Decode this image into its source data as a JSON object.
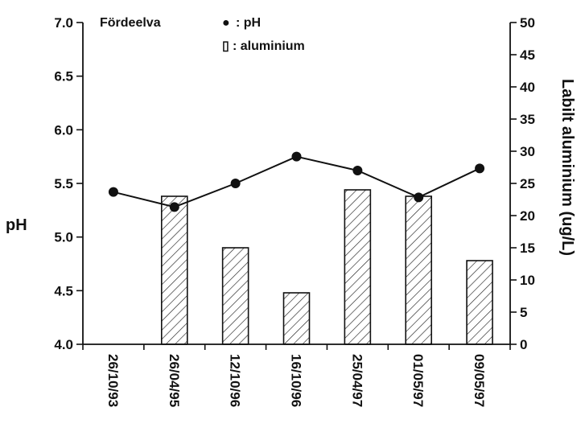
{
  "chart_data": {
    "type": "bar+line",
    "title": "Fördeelva",
    "categories": [
      "26/10/93",
      "26/04/95",
      "12/10/96",
      "16/10/96",
      "25/04/97",
      "01/05/97",
      "09/05/97"
    ],
    "series": [
      {
        "name": "aluminium",
        "type": "bar",
        "axis": "right",
        "pattern": "diagonal-hatch",
        "values": [
          null,
          23,
          15,
          8,
          24,
          23,
          13
        ]
      },
      {
        "name": "pH",
        "type": "line",
        "axis": "left",
        "marker": "filled-circle",
        "values": [
          5.42,
          5.28,
          5.5,
          5.75,
          5.62,
          5.37,
          5.64
        ]
      }
    ],
    "ylabel_left": "pH",
    "ylim_left": [
      4.0,
      7.0
    ],
    "yticks_left": [
      "4.0",
      "4.5",
      "5.0",
      "5.5",
      "6.0",
      "6.5",
      "7.0"
    ],
    "ylabel_right": "Labilt aluminium (ug/L)",
    "ylim_right": [
      0,
      50
    ],
    "yticks_right": [
      "0",
      "5",
      "10",
      "15",
      "20",
      "25",
      "30",
      "35",
      "40",
      "45",
      "50"
    ],
    "legend": {
      "placement": "top-center",
      "entries": [
        {
          "symbol": "●",
          "label": ": pH"
        },
        {
          "symbol": "▯",
          "label": ": aluminium"
        }
      ]
    },
    "grid": false
  }
}
